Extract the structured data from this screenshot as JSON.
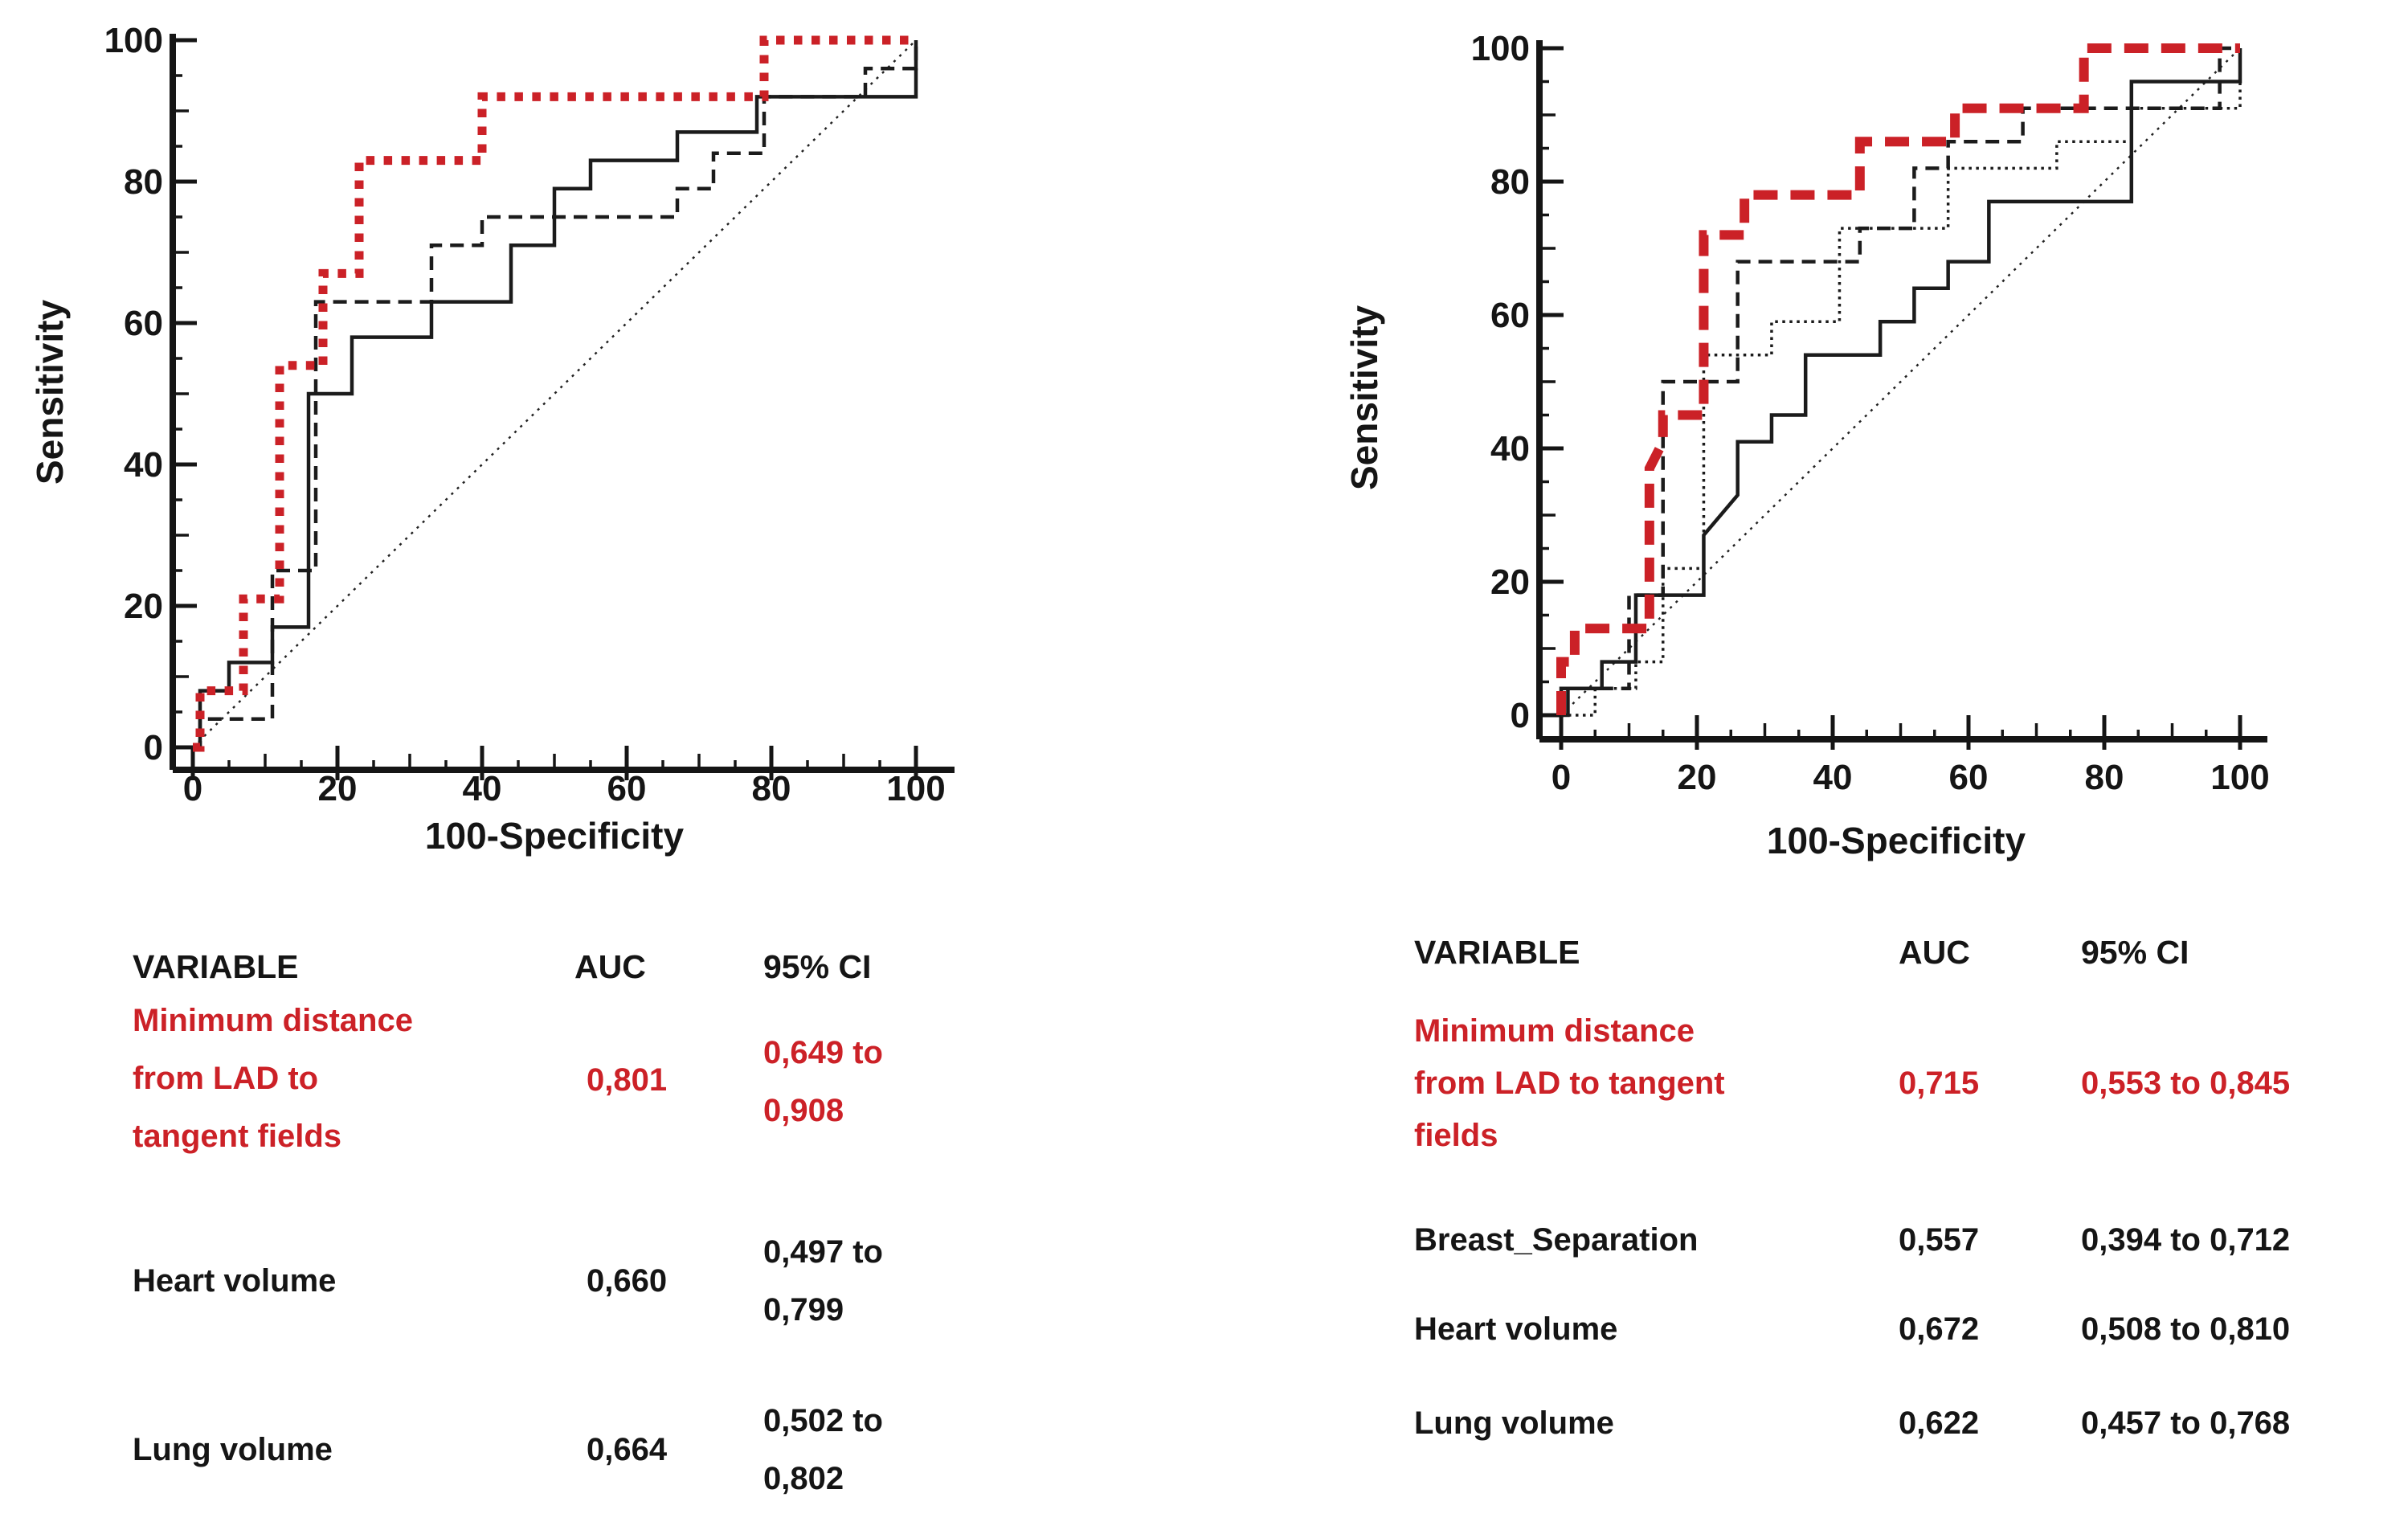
{
  "figure_type": "ROC-curve comparison figure, two panels with AUC tables",
  "accent_red": "#cc2127",
  "text_black": "#151515",
  "chart_data": [
    {
      "type": "line",
      "subtype": "roc-step-curves",
      "panel": "left",
      "xlabel": "100-Specificity",
      "ylabel": "Sensitivity",
      "xlim": [
        0,
        100
      ],
      "ylim": [
        0,
        100
      ],
      "x_ticks": [
        0,
        20,
        40,
        60,
        80,
        100
      ],
      "y_ticks": [
        0,
        20,
        40,
        60,
        80,
        100
      ],
      "minor_tick_step": 5,
      "grid": false,
      "diagonal_reference": true,
      "series": [
        {
          "name": "Lung volume",
          "auc": "0,664",
          "style": "dashed",
          "color": "#1b1b1b",
          "points": [
            [
              0,
              0
            ],
            [
              1,
              0
            ],
            [
              1,
              4
            ],
            [
              11,
              4
            ],
            [
              11,
              25
            ],
            [
              17,
              25
            ],
            [
              17,
              63
            ],
            [
              33,
              63
            ],
            [
              33,
              71
            ],
            [
              40,
              71
            ],
            [
              40,
              75
            ],
            [
              67,
              75
            ],
            [
              67,
              79
            ],
            [
              72,
              79
            ],
            [
              72,
              84
            ],
            [
              79,
              84
            ],
            [
              79,
              92
            ],
            [
              93,
              92
            ],
            [
              93,
              96
            ],
            [
              100,
              96
            ],
            [
              100,
              100
            ]
          ]
        },
        {
          "name": "Heart volume",
          "auc": "0,660",
          "style": "solid",
          "color": "#1b1b1b",
          "points": [
            [
              0,
              0
            ],
            [
              1,
              0
            ],
            [
              1,
              8
            ],
            [
              5,
              8
            ],
            [
              5,
              12
            ],
            [
              11,
              12
            ],
            [
              11,
              17
            ],
            [
              16,
              17
            ],
            [
              16,
              50
            ],
            [
              22,
              50
            ],
            [
              22,
              58
            ],
            [
              33,
              58
            ],
            [
              33,
              63
            ],
            [
              44,
              63
            ],
            [
              44,
              71
            ],
            [
              50,
              71
            ],
            [
              50,
              79
            ],
            [
              55,
              79
            ],
            [
              55,
              83
            ],
            [
              67,
              83
            ],
            [
              67,
              87
            ],
            [
              78,
              87
            ],
            [
              78,
              92
            ],
            [
              100,
              92
            ],
            [
              100,
              100
            ]
          ]
        },
        {
          "name": "Minimum distance from LAD to tangent fields",
          "auc": "0,801",
          "style": "thick-dotted",
          "color": "#cb2127",
          "points": [
            [
              0,
              0
            ],
            [
              1,
              0
            ],
            [
              1,
              8
            ],
            [
              7,
              8
            ],
            [
              7,
              21
            ],
            [
              12,
              21
            ],
            [
              12,
              54
            ],
            [
              18,
              54
            ],
            [
              18,
              67
            ],
            [
              23,
              67
            ],
            [
              23,
              83
            ],
            [
              40,
              83
            ],
            [
              40,
              92
            ],
            [
              79,
              92
            ],
            [
              79,
              100
            ],
            [
              100,
              100
            ]
          ]
        }
      ]
    },
    {
      "type": "line",
      "subtype": "roc-step-curves",
      "panel": "right",
      "xlabel": "100-Specificity",
      "ylabel": "Sensitivity",
      "xlim": [
        0,
        100
      ],
      "ylim": [
        0,
        100
      ],
      "x_ticks": [
        0,
        20,
        40,
        60,
        80,
        100
      ],
      "y_ticks": [
        0,
        20,
        40,
        60,
        80,
        100
      ],
      "minor_tick_step": 5,
      "grid": false,
      "diagonal_reference": true,
      "series": [
        {
          "name": "Lung volume",
          "auc": "0,622",
          "style": "dotted",
          "color": "#1b1b1b",
          "points": [
            [
              0,
              0
            ],
            [
              5,
              0
            ],
            [
              5,
              4
            ],
            [
              11,
              4
            ],
            [
              11,
              8
            ],
            [
              15,
              8
            ],
            [
              15,
              22
            ],
            [
              21,
              22
            ],
            [
              21,
              54
            ],
            [
              31,
              54
            ],
            [
              31,
              59
            ],
            [
              41,
              59
            ],
            [
              41,
              73
            ],
            [
              57,
              73
            ],
            [
              57,
              82
            ],
            [
              73,
              82
            ],
            [
              73,
              86
            ],
            [
              84,
              86
            ],
            [
              84,
              91
            ],
            [
              100,
              91
            ],
            [
              100,
              100
            ]
          ]
        },
        {
          "name": "Heart volume",
          "auc": "0,672",
          "style": "dashed",
          "color": "#1b1b1b",
          "points": [
            [
              0,
              0
            ],
            [
              0,
              4
            ],
            [
              10,
              4
            ],
            [
              10,
              18
            ],
            [
              15,
              18
            ],
            [
              15,
              50
            ],
            [
              26,
              50
            ],
            [
              26,
              68
            ],
            [
              44,
              68
            ],
            [
              44,
              73
            ],
            [
              52,
              73
            ],
            [
              52,
              82
            ],
            [
              57,
              82
            ],
            [
              57,
              86
            ],
            [
              68,
              86
            ],
            [
              68,
              91
            ],
            [
              97,
              91
            ],
            [
              97,
              100
            ],
            [
              100,
              100
            ]
          ]
        },
        {
          "name": "Breast_Separation",
          "auc": "0,557",
          "style": "solid",
          "color": "#1b1b1b",
          "points": [
            [
              0,
              0
            ],
            [
              1,
              0
            ],
            [
              1,
              4
            ],
            [
              6,
              4
            ],
            [
              6,
              8
            ],
            [
              11,
              8
            ],
            [
              11,
              18
            ],
            [
              21,
              18
            ],
            [
              21,
              27
            ],
            [
              26,
              33
            ],
            [
              26,
              41
            ],
            [
              31,
              41
            ],
            [
              31,
              45
            ],
            [
              36,
              45
            ],
            [
              36,
              54
            ],
            [
              47,
              54
            ],
            [
              47,
              59
            ],
            [
              52,
              59
            ],
            [
              52,
              64
            ],
            [
              57,
              64
            ],
            [
              57,
              68
            ],
            [
              63,
              68
            ],
            [
              63,
              77
            ],
            [
              84,
              77
            ],
            [
              84,
              95
            ],
            [
              100,
              95
            ],
            [
              100,
              100
            ]
          ]
        },
        {
          "name": "Minimum distance from LAD to tangent fields",
          "auc": "0,715",
          "style": "thick-dashed",
          "color": "#cb2127",
          "points": [
            [
              0,
              0
            ],
            [
              0,
              8
            ],
            [
              2,
              8
            ],
            [
              2,
              13
            ],
            [
              13,
              13
            ],
            [
              13,
              37
            ],
            [
              15,
              41
            ],
            [
              15,
              45
            ],
            [
              21,
              45
            ],
            [
              21,
              72
            ],
            [
              27,
              72
            ],
            [
              27,
              78
            ],
            [
              44,
              78
            ],
            [
              44,
              86
            ],
            [
              58,
              86
            ],
            [
              58,
              91
            ],
            [
              77,
              91
            ],
            [
              77,
              100
            ],
            [
              97,
              100
            ],
            [
              100,
              100
            ]
          ]
        }
      ]
    }
  ],
  "tables": [
    {
      "header": {
        "variable": "VARIABLE",
        "auc": "AUC",
        "ci": "95% CI"
      },
      "rows": [
        {
          "variable": [
            "Minimum distance",
            "from LAD to",
            "tangent fields"
          ],
          "auc": "0,801",
          "ci": [
            "0,649 to",
            "0,908"
          ],
          "highlight": true
        },
        {
          "variable": [
            "Heart volume"
          ],
          "auc": "0,660",
          "ci": [
            "0,497 to",
            "0,799"
          ],
          "highlight": false
        },
        {
          "variable": [
            "Lung volume"
          ],
          "auc": "0,664",
          "ci": [
            "0,502 to",
            "0,802"
          ],
          "highlight": false
        }
      ]
    },
    {
      "header": {
        "variable": "VARIABLE",
        "auc": "AUC",
        "ci": "95% CI"
      },
      "rows": [
        {
          "variable": [
            "Minimum distance",
            "from LAD to tangent",
            "fields"
          ],
          "auc": "0,715",
          "ci": [
            "0,553 to 0,845"
          ],
          "highlight": true
        },
        {
          "variable": [
            "Breast_Separation"
          ],
          "auc": "0,557",
          "ci": [
            "0,394 to 0,712"
          ],
          "highlight": false
        },
        {
          "variable": [
            "Heart volume"
          ],
          "auc": "0,672",
          "ci": [
            "0,508 to 0,810"
          ],
          "highlight": false
        },
        {
          "variable": [
            "Lung volume"
          ],
          "auc": "0,622",
          "ci": [
            "0,457 to 0,768"
          ],
          "highlight": false
        }
      ]
    }
  ]
}
